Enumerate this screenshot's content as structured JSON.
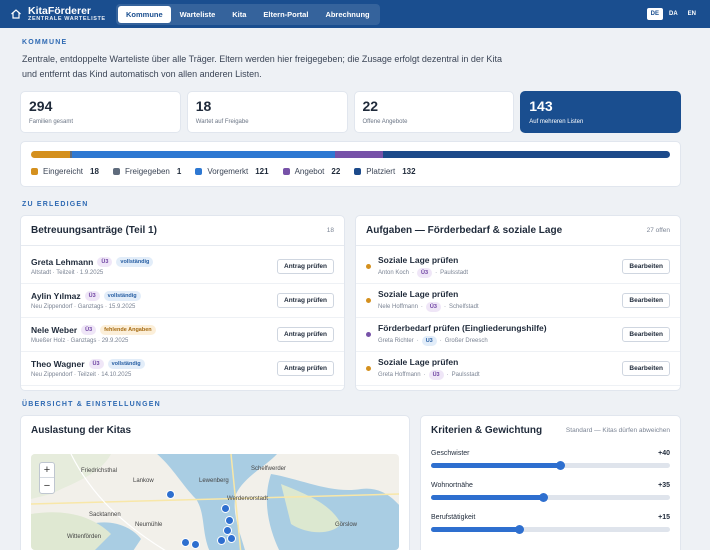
{
  "header": {
    "brand": "KitaFörderer",
    "brand_sub": "ZENTRALE WARTELISTE",
    "nav": [
      {
        "label": "Kommune",
        "active": true
      },
      {
        "label": "Warteliste",
        "active": false
      },
      {
        "label": "Kita",
        "active": false
      },
      {
        "label": "Eltern-Portal",
        "active": false
      },
      {
        "label": "Abrechnung",
        "active": false
      }
    ],
    "languages": [
      {
        "label": "DE",
        "active": true
      },
      {
        "label": "DA",
        "active": false
      },
      {
        "label": "EN",
        "active": false
      }
    ]
  },
  "intro": {
    "label": "KOMMUNE",
    "text": "Zentrale, entdoppelte Warteliste über alle Träger. Eltern werden hier freigegeben; die Zusage erfolgt dezentral in der Kita und entfernt das Kind automatisch von allen anderen Listen."
  },
  "stats": [
    {
      "value": "294",
      "label": "Familien gesamt"
    },
    {
      "value": "18",
      "label": "Wartet auf Freigabe"
    },
    {
      "value": "22",
      "label": "Offene Angebote"
    },
    {
      "value": "143",
      "label": "Auf mehreren Listen"
    }
  ],
  "status_bar": {
    "segments": [
      {
        "label": "Eingereicht",
        "count": "18",
        "value": 18,
        "color": "#d4901e"
      },
      {
        "label": "Freigegeben",
        "count": "1",
        "value": 1,
        "color": "#5f6b7c"
      },
      {
        "label": "Vorgemerkt",
        "count": "121",
        "value": 121,
        "color": "#2e78d2"
      },
      {
        "label": "Angebot",
        "count": "22",
        "value": 22,
        "color": "#7752a8"
      },
      {
        "label": "Platziert",
        "count": "132",
        "value": 132,
        "color": "#1c4a8a"
      }
    ]
  },
  "todo": {
    "label": "ZU ERLEDIGEN",
    "applications": {
      "title": "Betreuungsanträge (Teil 1)",
      "count": "18",
      "rows": [
        {
          "name": "Greta Lehmann",
          "age": "Ü3",
          "status": "vollständig",
          "status_type": "ok",
          "meta": "Altstadt · Teilzeit · 1.9.2025",
          "action": "Antrag prüfen"
        },
        {
          "name": "Aylin Yılmaz",
          "age": "Ü3",
          "status": "vollständig",
          "status_type": "ok",
          "meta": "Neu Zippendorf · Ganztags · 15.9.2025",
          "action": "Antrag prüfen"
        },
        {
          "name": "Nele Weber",
          "age": "Ü3",
          "status": "fehlende Angaben",
          "status_type": "warn",
          "meta": "Mueßer Holz · Ganztags · 29.9.2025",
          "action": "Antrag prüfen"
        },
        {
          "name": "Theo Wagner",
          "age": "Ü3",
          "status": "vollständig",
          "status_type": "ok",
          "meta": "Neu Zippendorf · Teilzeit · 14.10.2025",
          "action": "Antrag prüfen"
        }
      ]
    },
    "tasks": {
      "title": "Aufgaben — Förderbedarf & soziale Lage",
      "count": "27 offen",
      "rows": [
        {
          "title": "Soziale Lage prüfen",
          "person": "Anton Koch",
          "age": "Ü3",
          "place": "Paulsstadt",
          "dot": "#d4901e",
          "action": "Bearbeiten"
        },
        {
          "title": "Soziale Lage prüfen",
          "person": "Nele Hoffmann",
          "age": "Ü3",
          "place": "Schelfstadt",
          "dot": "#d4901e",
          "action": "Bearbeiten"
        },
        {
          "title": "Förderbedarf prüfen (Eingliederungshilfe)",
          "person": "Greta Richter",
          "age": "U3",
          "place": "Großer Dreesch",
          "dot": "#7752a8",
          "action": "Bearbeiten"
        },
        {
          "title": "Soziale Lage prüfen",
          "person": "Greta Hoffmann",
          "age": "Ü3",
          "place": "Paulsstadt",
          "dot": "#d4901e",
          "action": "Bearbeiten"
        }
      ]
    }
  },
  "overview": {
    "label": "ÜBERSICHT & EINSTELLUNGEN",
    "map": {
      "title": "Auslastung der Kitas",
      "zoom_in": "+",
      "zoom_out": "−",
      "places": [
        "Friedrichsthal",
        "Lankow",
        "Lewenberg",
        "Schelfwerder",
        "Werdervorstadt",
        "Sacktannen",
        "Neumühle",
        "Wittenförden",
        "Görslow"
      ]
    },
    "criteria": {
      "title": "Kriterien & Gewichtung",
      "note": "Standard — Kitas dürfen abweichen",
      "items": [
        {
          "label": "Geschwister",
          "value": "+40",
          "level": 0.54
        },
        {
          "label": "Wohnortnähe",
          "value": "+35",
          "level": 0.47
        },
        {
          "label": "Berufstätigkeit",
          "value": "+15",
          "level": 0.37
        }
      ]
    }
  }
}
